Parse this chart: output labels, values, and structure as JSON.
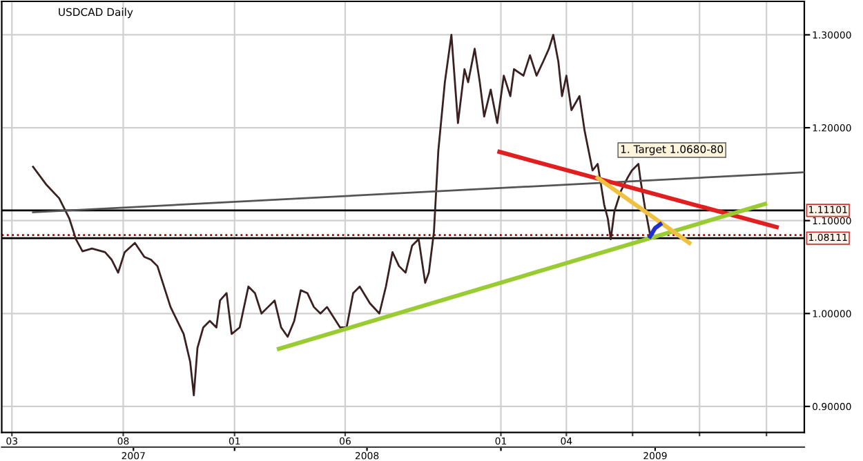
{
  "chart_data": {
    "type": "line",
    "title": "USDCAD Daily",
    "xlim": [
      "2007-02-15",
      "2010-02-22"
    ],
    "ylim": [
      0.872,
      1.336
    ],
    "xticks": [
      {
        "value": "2007-03-01",
        "label": "03"
      },
      {
        "value": "2007-08-01",
        "label": "08"
      },
      {
        "value": "2008-01-01",
        "label": "01"
      },
      {
        "value": "2008-06-01",
        "label": "06"
      },
      {
        "value": "2009-01-01",
        "label": "01"
      },
      {
        "value": "2009-04-01",
        "label": "04"
      },
      {
        "value": "2009-07-01",
        "label": null
      },
      {
        "value": "2009-10-01",
        "label": null
      },
      {
        "value": "2010-01-01",
        "label": null
      }
    ],
    "x2lim": [
      "2007-02-15",
      "2010-02-22"
    ],
    "x2ticks": [
      {
        "value": "2007-08-15",
        "label": "2007"
      },
      {
        "value": "2008-01-01",
        "label": null
      },
      {
        "value": "2008-07-01",
        "label": "2008"
      },
      {
        "value": "2009-01-01",
        "label": null
      },
      {
        "value": "2009-08-01",
        "label": "2009"
      }
    ],
    "yticks": [
      {
        "value": 0.9,
        "label": "0.90000"
      },
      {
        "value": 1.0,
        "label": "1.00000"
      },
      {
        "value": 1.1,
        "label": "1.10000"
      },
      {
        "value": 1.2,
        "label": "1.20000"
      },
      {
        "value": 1.3,
        "label": "1.30000"
      }
    ],
    "grid": true,
    "series": [
      {
        "color": "#3a2020",
        "x": [
          "2007-03-30",
          "2007-04-17",
          "2007-05-05",
          "2007-05-19",
          "2007-05-28",
          "2007-06-06",
          "2007-06-19",
          "2007-07-07",
          "2007-07-16",
          "2007-07-25",
          "2007-08-03",
          "2007-08-17",
          "2007-08-30",
          "2007-09-08",
          "2007-09-17",
          "2007-10-05",
          "2007-10-23",
          "2007-11-01",
          "2007-11-06",
          "2007-11-11",
          "2007-11-19",
          "2007-11-28",
          "2007-12-07",
          "2007-12-12",
          "2007-12-21",
          "2007-12-28",
          "2008-01-08",
          "2008-01-20",
          "2008-01-29",
          "2008-02-07",
          "2008-02-16",
          "2008-02-25",
          "2008-03-05",
          "2008-03-14",
          "2008-03-23",
          "2008-04-01",
          "2008-04-10",
          "2008-04-19",
          "2008-04-28",
          "2008-05-07",
          "2008-05-25",
          "2008-06-03",
          "2008-06-12",
          "2008-06-21",
          "2008-07-05",
          "2008-07-18",
          "2008-07-27",
          "2008-08-05",
          "2008-08-14",
          "2008-08-23",
          "2008-09-01",
          "2008-09-10",
          "2008-09-19",
          "2008-09-24",
          "2008-10-01",
          "2008-10-07",
          "2008-10-16",
          "2008-10-25",
          "2008-11-03",
          "2008-11-12",
          "2008-11-17",
          "2008-11-26",
          "2008-12-03",
          "2008-12-09",
          "2008-12-18",
          "2008-12-27",
          "2009-01-05",
          "2009-01-14",
          "2009-01-19",
          "2009-02-01",
          "2009-02-10",
          "2009-02-19",
          "2009-02-28",
          "2009-03-08",
          "2009-03-14",
          "2009-03-21",
          "2009-03-26",
          "2009-04-01",
          "2009-04-08",
          "2009-04-19",
          "2009-04-26",
          "2009-05-07",
          "2009-05-14",
          "2009-05-23",
          "2009-05-28",
          "2009-06-01",
          "2009-06-06",
          "2009-06-15",
          "2009-06-24",
          "2009-06-30",
          "2009-07-09",
          "2009-07-12",
          "2009-07-18",
          "2009-07-25"
        ],
        "values": [
          1.158,
          1.139,
          1.124,
          1.102,
          1.08,
          1.067,
          1.07,
          1.066,
          1.058,
          1.044,
          1.066,
          1.076,
          1.061,
          1.058,
          1.051,
          1.007,
          0.978,
          0.948,
          0.912,
          0.963,
          0.985,
          0.992,
          0.985,
          1.014,
          1.022,
          0.978,
          0.985,
          1.029,
          1.022,
          1.0,
          1.007,
          1.014,
          0.985,
          0.975,
          0.992,
          1.025,
          1.022,
          1.007,
          1.0,
          1.007,
          0.985,
          0.985,
          1.022,
          1.029,
          1.011,
          1.0,
          1.029,
          1.066,
          1.051,
          1.044,
          1.073,
          1.08,
          1.033,
          1.044,
          1.088,
          1.175,
          1.249,
          1.3,
          1.205,
          1.263,
          1.249,
          1.285,
          1.249,
          1.212,
          1.241,
          1.205,
          1.256,
          1.234,
          1.263,
          1.256,
          1.278,
          1.256,
          1.271,
          1.285,
          1.3,
          1.271,
          1.234,
          1.256,
          1.219,
          1.234,
          1.197,
          1.154,
          1.161,
          1.117,
          1.102,
          1.08,
          1.11,
          1.132,
          1.146,
          1.154,
          1.161,
          1.143,
          1.114,
          1.085
        ]
      },
      {
        "color": "#555555",
        "x": [
          "2007-03-30",
          "2010-02-22"
        ],
        "values": [
          1.109,
          1.152
        ]
      },
      {
        "color": "#e02020",
        "x": [
          "2008-12-30",
          "2010-01-15"
        ],
        "values": [
          1.174,
          1.093
        ]
      },
      {
        "color": "#99cc33",
        "x": [
          "2008-03-02",
          "2009-12-30"
        ],
        "values": [
          0.962,
          1.118
        ]
      },
      {
        "color": "#f0c040",
        "x": [
          "2009-05-14",
          "2009-09-17"
        ],
        "values": [
          1.146,
          1.076
        ]
      },
      {
        "color": "#2030d0",
        "x": [
          "2009-07-25",
          "2009-08-01",
          "2009-08-08"
        ],
        "values": [
          1.083,
          1.092,
          1.096
        ]
      }
    ],
    "ref_lines": [
      {
        "axis": "y",
        "value": 1.11101,
        "label": "1.11101",
        "color": "#000000",
        "line_style": "solid"
      },
      {
        "axis": "y",
        "value": 1.0845,
        "label": null,
        "color": "#aa0000",
        "line_style": "dotted"
      },
      {
        "axis": "y",
        "value": 1.08111,
        "label": "1.08111",
        "color": "#000000",
        "line_style": "solid"
      }
    ],
    "annotations": [
      "1. Target 1.0680-80"
    ]
  }
}
